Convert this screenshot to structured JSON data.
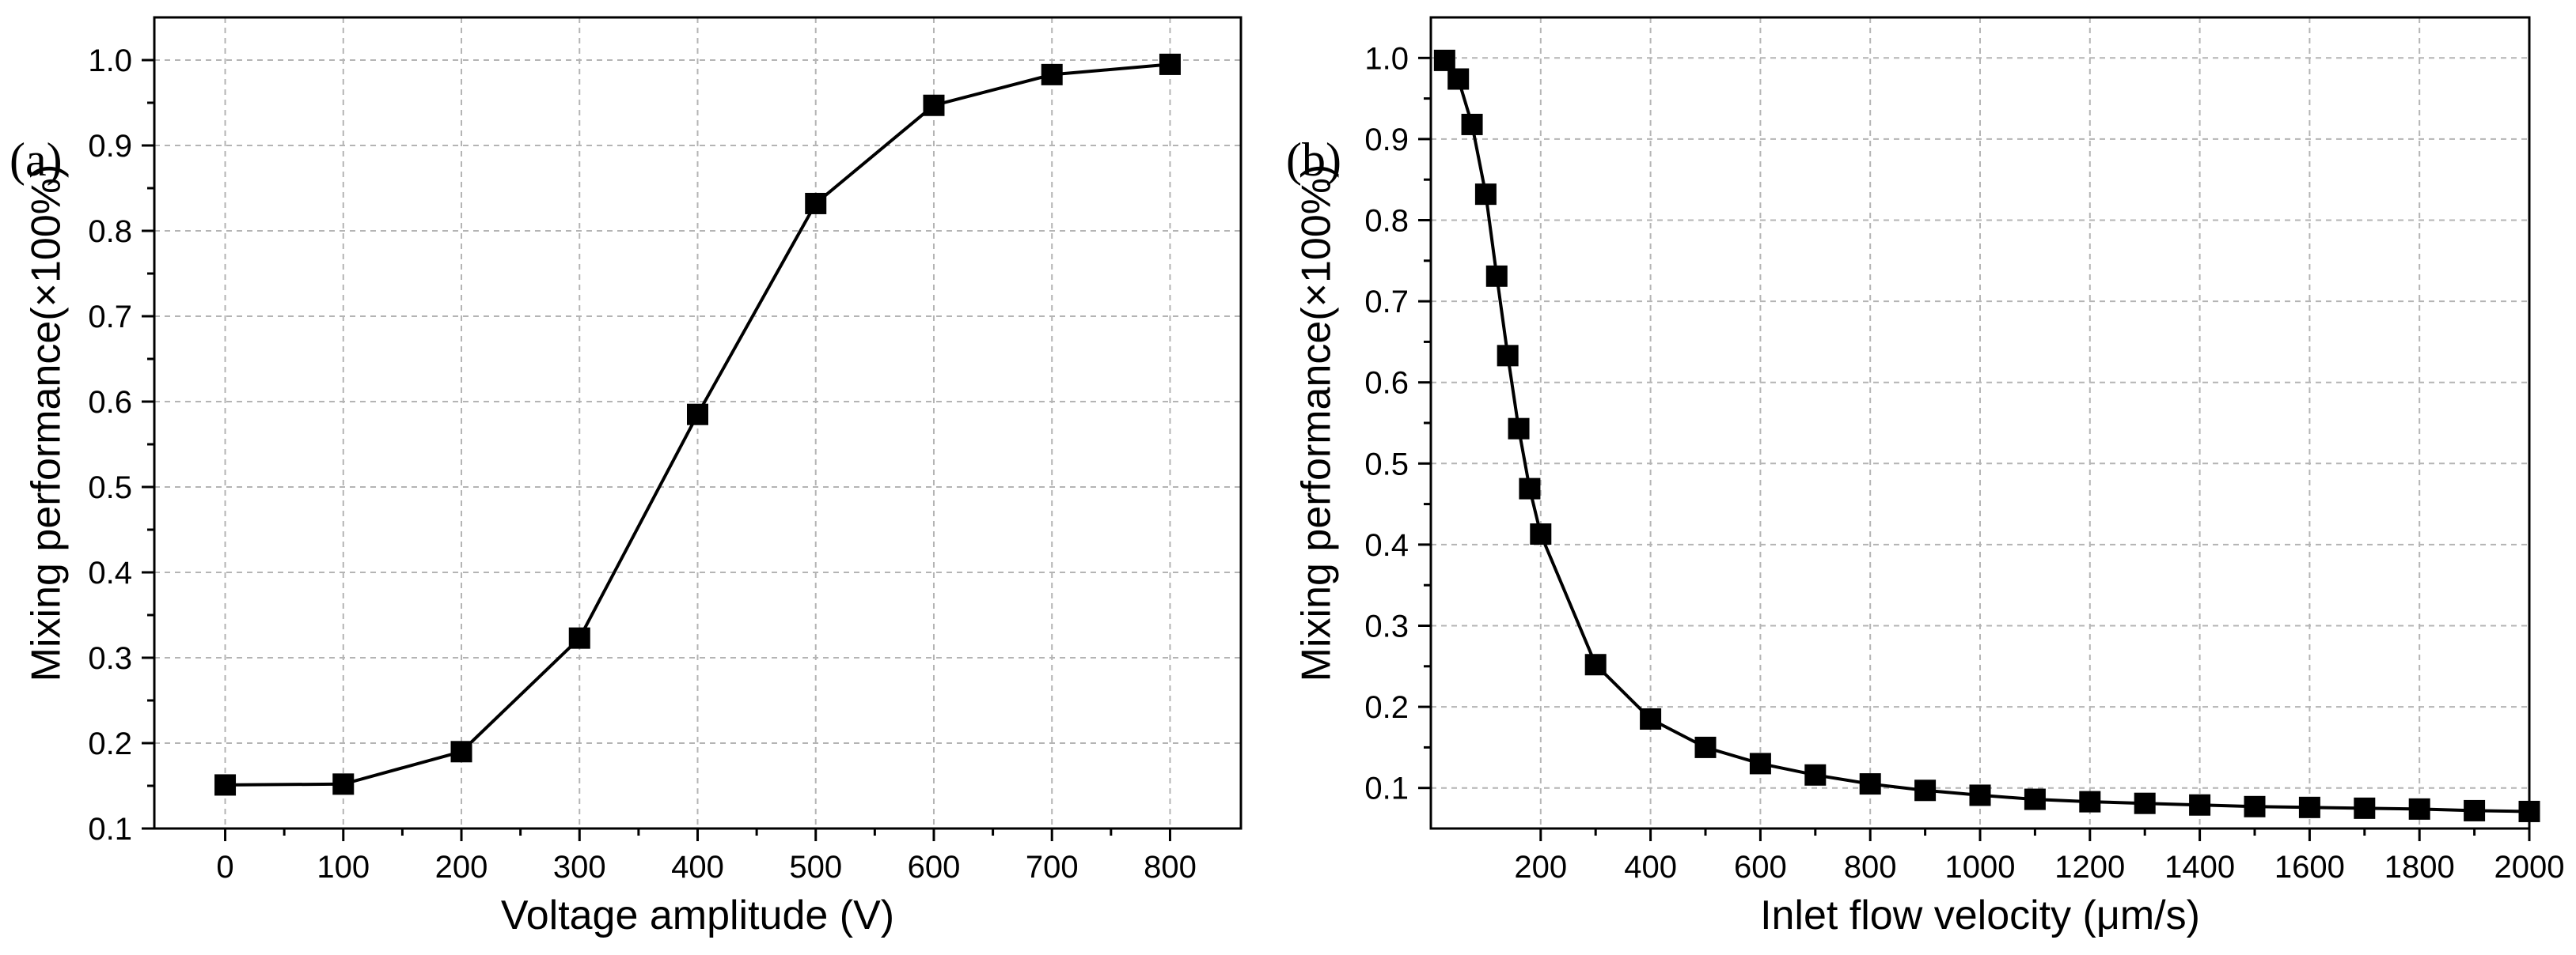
{
  "chart_data": [
    {
      "panel_label": "(a)",
      "type": "line",
      "title": "",
      "xlabel": "Voltage amplitude (V)",
      "ylabel": "Mixing performance(×100%)",
      "xlim": [
        -60,
        860
      ],
      "ylim": [
        0.1,
        1.05
      ],
      "x_ticks": [
        0,
        100,
        200,
        300,
        400,
        500,
        600,
        700,
        800
      ],
      "x_tick_labels": [
        "0",
        "100",
        "200",
        "300",
        "400",
        "500",
        "600",
        "700",
        "800"
      ],
      "y_ticks": [
        0.1,
        0.2,
        0.3,
        0.4,
        0.5,
        0.6,
        0.7,
        0.8,
        0.9,
        1.0
      ],
      "y_tick_labels": [
        "0.1",
        "0.2",
        "0.3",
        "0.4",
        "0.5",
        "0.6",
        "0.7",
        "0.8",
        "0.9",
        "1.0"
      ],
      "grid": true,
      "marker": "square",
      "series": [
        {
          "name": "Mixing performance",
          "x": [
            0,
            100,
            200,
            300,
            400,
            500,
            600,
            700,
            800
          ],
          "y": [
            0.151,
            0.152,
            0.19,
            0.323,
            0.585,
            0.832,
            0.947,
            0.983,
            0.995
          ]
        }
      ]
    },
    {
      "panel_label": "(b)",
      "type": "line",
      "title": "",
      "xlabel": "Inlet flow velocity (μm/s)",
      "ylabel": "Mixing performance(×100%)",
      "xlim": [
        0,
        2000
      ],
      "ylim": [
        0.05,
        1.05
      ],
      "x_ticks": [
        200,
        400,
        600,
        800,
        1000,
        1200,
        1400,
        1600,
        1800,
        2000
      ],
      "x_tick_labels": [
        "200",
        "400",
        "600",
        "800",
        "1000",
        "1200",
        "1400",
        "1600",
        "1800",
        "2000"
      ],
      "y_ticks": [
        0.1,
        0.2,
        0.3,
        0.4,
        0.5,
        0.6,
        0.7,
        0.8,
        0.9,
        1.0
      ],
      "y_tick_labels": [
        "0.1",
        "0.2",
        "0.3",
        "0.4",
        "0.5",
        "0.6",
        "0.7",
        "0.8",
        "0.9",
        "1.0"
      ],
      "grid": true,
      "marker": "square",
      "series": [
        {
          "name": "Mixing performance",
          "x": [
            25,
            50,
            75,
            100,
            120,
            140,
            160,
            180,
            200,
            300,
            400,
            500,
            600,
            700,
            800,
            900,
            1000,
            1100,
            1200,
            1300,
            1400,
            1500,
            1600,
            1700,
            1800,
            1900,
            2000
          ],
          "y": [
            0.997,
            0.974,
            0.918,
            0.832,
            0.731,
            0.633,
            0.543,
            0.469,
            0.413,
            0.252,
            0.185,
            0.15,
            0.13,
            0.116,
            0.105,
            0.097,
            0.091,
            0.086,
            0.083,
            0.081,
            0.079,
            0.077,
            0.076,
            0.075,
            0.074,
            0.072,
            0.071
          ]
        }
      ]
    }
  ],
  "colors": {
    "background": "#ffffff",
    "axes": "#000000",
    "grid": "#b4b4b4",
    "series": "#000000"
  }
}
